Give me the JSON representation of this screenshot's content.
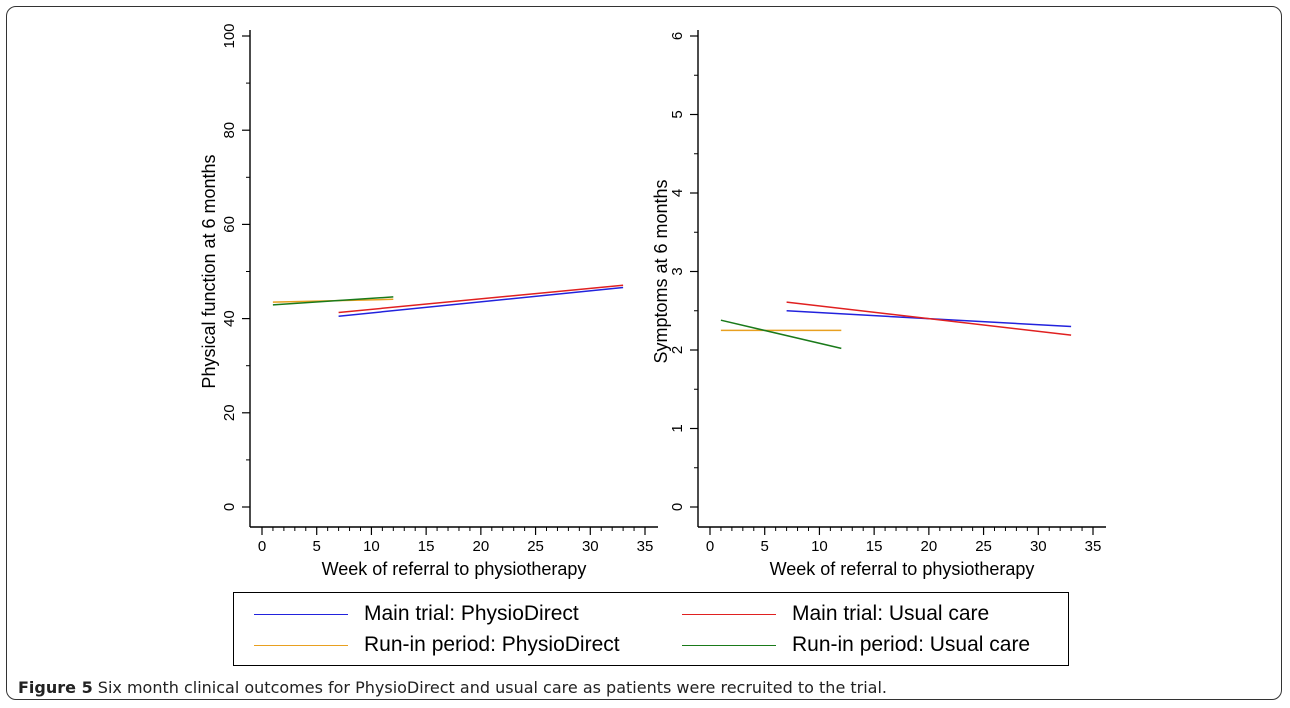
{
  "chart_data": [
    {
      "type": "line",
      "title": "",
      "xlabel": "Week of referral to physiotherapy",
      "ylabel": "Physical function at 6 months",
      "xlim": [
        0,
        35
      ],
      "ylim": [
        0,
        100
      ],
      "xticks": [
        0,
        5,
        10,
        15,
        20,
        25,
        30,
        35
      ],
      "yticks": [
        0,
        20,
        40,
        60,
        80,
        100
      ],
      "grid": false,
      "series": [
        {
          "name": "Main trial: PhysioDirect",
          "color": "#2222dd",
          "x": [
            7,
            33
          ],
          "y": [
            40.5,
            46.6
          ]
        },
        {
          "name": "Main trial: Usual care",
          "color": "#e02020",
          "x": [
            7,
            33
          ],
          "y": [
            41.3,
            47.1
          ]
        },
        {
          "name": "Run-in period: PhysioDirect",
          "color": "#e8a020",
          "x": [
            1,
            12
          ],
          "y": [
            43.5,
            44.1
          ]
        },
        {
          "name": "Run-in period: Usual care",
          "color": "#1a7a1a",
          "x": [
            1,
            12
          ],
          "y": [
            42.9,
            44.6
          ]
        }
      ]
    },
    {
      "type": "line",
      "title": "",
      "xlabel": "Week of referral to physiotherapy",
      "ylabel": "Symptoms at 6 months",
      "xlim": [
        0,
        35
      ],
      "ylim": [
        0,
        6
      ],
      "xticks": [
        0,
        5,
        10,
        15,
        20,
        25,
        30,
        35
      ],
      "yticks": [
        0,
        1,
        2,
        3,
        4,
        5,
        6
      ],
      "grid": false,
      "series": [
        {
          "name": "Main trial: PhysioDirect",
          "color": "#2222dd",
          "x": [
            7,
            33
          ],
          "y": [
            2.5,
            2.3
          ]
        },
        {
          "name": "Main trial: Usual care",
          "color": "#e02020",
          "x": [
            7,
            33
          ],
          "y": [
            2.61,
            2.19
          ]
        },
        {
          "name": "Run-in period: PhysioDirect",
          "color": "#e8a020",
          "x": [
            1,
            12
          ],
          "y": [
            2.25,
            2.25
          ]
        },
        {
          "name": "Run-in period: Usual care",
          "color": "#1a7a1a",
          "x": [
            1,
            12
          ],
          "y": [
            2.38,
            2.02
          ]
        }
      ]
    }
  ],
  "legend": {
    "placement": "bottom",
    "items": [
      {
        "label": "Main trial: PhysioDirect",
        "color": "#2222dd"
      },
      {
        "label": "Main trial: Usual care",
        "color": "#e02020"
      },
      {
        "label": "Run-in period: PhysioDirect",
        "color": "#e8a020"
      },
      {
        "label": "Run-in period: Usual care",
        "color": "#1a7a1a"
      }
    ]
  },
  "caption": {
    "label": "Figure 5",
    "text": " Six month clinical outcomes for PhysioDirect and usual care as patients were recruited to the trial."
  }
}
